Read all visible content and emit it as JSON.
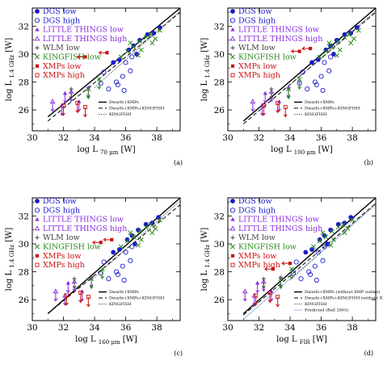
{
  "chart_data": [
    {
      "type": "scatter",
      "panel_label": "(a)",
      "xlabel": "log L",
      "xlabel_sub": "70 μm",
      "xlabel_unit": "[W]",
      "ylabel": "log L",
      "ylabel_sub": "1.4 GHz",
      "ylabel_unit": "[W]",
      "xlim": [
        30,
        39.5
      ],
      "ylim": [
        24.5,
        33.3
      ],
      "xticks": [
        "30",
        "32",
        "34",
        "36",
        "38"
      ],
      "yticks": [
        "26",
        "28",
        "30",
        "32"
      ],
      "legend": [
        "DGS low",
        "DGS high",
        "LITTLE THINGS low",
        "LITTLE THINGS high",
        "WLM low",
        "KINGFISH low",
        "XMPs low",
        "XMPs high"
      ],
      "fit_legend": [
        "Dwarfs+XMPs",
        "Dwarfs+XMPs+KINGFISH",
        "KINGFISH"
      ],
      "fits": [
        {
          "style": "solid",
          "x": [
            31,
            39.5
          ],
          "y": [
            25.5,
            33.3
          ]
        },
        {
          "style": "dashed",
          "x": [
            31,
            39.5
          ],
          "y": [
            25.2,
            33.0
          ]
        },
        {
          "style": "dotted",
          "x": [
            34,
            39.5
          ],
          "y": [
            27.6,
            33.1
          ]
        }
      ],
      "series": [
        {
          "name": "DGS low",
          "x": [
            35.6,
            36.2,
            36.5,
            36.9,
            37.4,
            37.8,
            38.2,
            35.2,
            36.7
          ],
          "y": [
            29.6,
            30.3,
            30.6,
            31.0,
            31.4,
            31.5,
            31.9,
            29.4,
            30.0
          ]
        },
        {
          "name": "DGS high",
          "x": [
            34.9,
            35.4,
            35.8,
            36.3,
            35.5,
            34.6,
            36.0,
            35.9,
            34.4,
            36.4
          ],
          "y": [
            27.5,
            28.0,
            28.4,
            28.8,
            27.8,
            28.7,
            29.4,
            27.4,
            27.9,
            29.8
          ]
        },
        {
          "name": "LITTLE THINGS low",
          "x": [
            32.1,
            33.0,
            33.6
          ],
          "y": [
            27.2,
            26.6,
            27.6
          ]
        },
        {
          "name": "LITTLE THINGS high",
          "x": [
            31.3,
            31.9,
            32.5
          ],
          "y": [
            26.6,
            26.3,
            27.3
          ]
        },
        {
          "name": "WLM low",
          "x": [
            32.5
          ],
          "y": [
            27.5
          ]
        },
        {
          "name": "KINGFISH low",
          "x": [
            35.7,
            36.1,
            36.5,
            36.9,
            37.3,
            37.6,
            37.9,
            38.2,
            36.3,
            37.0,
            37.7,
            36.8,
            33.6,
            34.3
          ],
          "y": [
            29.8,
            30.2,
            30.5,
            30.9,
            31.2,
            31.4,
            31.1,
            31.7,
            30.8,
            30.3,
            30.8,
            29.9,
            27.5,
            28.2
          ]
        },
        {
          "name": "XMPs low",
          "x": [
            33.4,
            34.8
          ],
          "y": [
            29.8,
            30.1
          ]
        },
        {
          "name": "XMPs high",
          "x": [
            32.0,
            32.9,
            33.4
          ],
          "y": [
            26.3,
            26.5,
            26.2
          ]
        }
      ]
    },
    {
      "type": "scatter",
      "panel_label": "(b)",
      "xlabel": "log L",
      "xlabel_sub": "100 μm",
      "xlabel_unit": "[W]",
      "ylabel": "log L",
      "ylabel_sub": "1.4 GHz",
      "ylabel_unit": "[W]",
      "xlim": [
        30,
        39.5
      ],
      "ylim": [
        24.5,
        33.3
      ],
      "xticks": [
        "30",
        "32",
        "34",
        "36",
        "38"
      ],
      "yticks": [
        "26",
        "28",
        "30",
        "32"
      ],
      "legend": [
        "DGS low",
        "DGS high",
        "LITTLE THINGS low",
        "LITTLE THINGS high",
        "WLM low",
        "KINGFISH low",
        "XMPs low",
        "XMPs high"
      ],
      "fit_legend": [
        "Dwarfs+XMPs",
        "Dwarfs+XMPs+KINGFISH",
        "KINGFISH"
      ],
      "fits": [
        {
          "style": "solid",
          "x": [
            31,
            39.5
          ],
          "y": [
            25.2,
            33.3
          ]
        },
        {
          "style": "dashed",
          "x": [
            31,
            39.5
          ],
          "y": [
            25.0,
            33.0
          ]
        },
        {
          "style": "dotted",
          "x": [
            34,
            39.5
          ],
          "y": [
            27.8,
            33.1
          ]
        }
      ],
      "series": [
        {
          "name": "DGS low",
          "x": [
            35.8,
            36.3,
            36.6,
            37.0,
            37.5,
            37.9,
            38.3,
            35.4,
            36.8
          ],
          "y": [
            29.6,
            30.3,
            30.6,
            31.0,
            31.4,
            31.5,
            31.9,
            29.4,
            30.0
          ]
        },
        {
          "name": "DGS high",
          "x": [
            35.1,
            35.6,
            36.0,
            36.5,
            35.7,
            34.8,
            36.2,
            36.1,
            34.6,
            36.6
          ],
          "y": [
            27.5,
            28.0,
            28.4,
            28.8,
            27.8,
            28.7,
            29.4,
            27.4,
            27.9,
            29.8
          ]
        },
        {
          "name": "LITTLE THINGS low",
          "x": [
            32.4,
            33.3,
            33.9
          ],
          "y": [
            27.2,
            26.6,
            27.6
          ]
        },
        {
          "name": "LITTLE THINGS high",
          "x": [
            31.6,
            32.2,
            32.8
          ],
          "y": [
            26.6,
            26.3,
            27.3
          ]
        },
        {
          "name": "WLM low",
          "x": [
            32.8
          ],
          "y": [
            27.5
          ]
        },
        {
          "name": "KINGFISH low",
          "x": [
            35.9,
            36.3,
            36.7,
            37.1,
            37.5,
            37.8,
            38.1,
            38.4,
            36.5,
            37.2,
            37.9,
            37.0,
            33.9,
            34.6
          ],
          "y": [
            29.8,
            30.2,
            30.5,
            30.9,
            31.2,
            31.4,
            31.1,
            31.7,
            30.8,
            30.3,
            30.8,
            29.9,
            27.5,
            28.2
          ]
        },
        {
          "name": "XMPs low",
          "x": [
            34.6,
            35.3
          ],
          "y": [
            30.2,
            30.4
          ]
        },
        {
          "name": "XMPs high",
          "x": [
            32.3,
            33.2,
            33.7
          ],
          "y": [
            26.3,
            26.5,
            26.2
          ]
        }
      ]
    },
    {
      "type": "scatter",
      "panel_label": "(c)",
      "xlabel": "log L",
      "xlabel_sub": "160 μm",
      "xlabel_unit": "[W]",
      "ylabel": "log L",
      "ylabel_sub": "1.4 GHz",
      "ylabel_unit": "[W]",
      "xlim": [
        30,
        39.5
      ],
      "ylim": [
        24.5,
        33.3
      ],
      "xticks": [
        "30",
        "32",
        "34",
        "36",
        "38"
      ],
      "yticks": [
        "26",
        "28",
        "30",
        "32"
      ],
      "legend": [
        "DGS low",
        "DGS high",
        "LITTLE THINGS low",
        "LITTLE THINGS high",
        "WLM low",
        "KINGFISH low",
        "XMPs low",
        "XMPs high"
      ],
      "fit_legend": [
        "Dwarfs+XMPs",
        "Dwarfs+XMPs+KINGFISH",
        "KINGFISH"
      ],
      "fits": [
        {
          "style": "solid",
          "x": [
            31,
            39.5
          ],
          "y": [
            25.0,
            33.3
          ]
        },
        {
          "style": "dashed",
          "x": [
            31,
            39.5
          ],
          "y": [
            25.0,
            32.8
          ]
        },
        {
          "style": "dotted",
          "x": [
            34,
            39.5
          ],
          "y": [
            27.6,
            33.1
          ]
        }
      ],
      "series": [
        {
          "name": "DGS low",
          "x": [
            35.6,
            36.1,
            36.4,
            36.8,
            37.3,
            37.7,
            38.1,
            35.2,
            36.6
          ],
          "y": [
            29.6,
            30.3,
            30.6,
            31.0,
            31.4,
            31.5,
            31.9,
            29.4,
            30.0
          ]
        },
        {
          "name": "DGS high",
          "x": [
            34.9,
            35.4,
            35.8,
            36.3,
            35.5,
            34.6,
            36.0,
            35.9,
            34.4,
            36.4
          ],
          "y": [
            27.5,
            28.0,
            28.4,
            28.8,
            27.8,
            28.7,
            29.4,
            27.4,
            27.9,
            29.8
          ]
        },
        {
          "name": "LITTLE THINGS low",
          "x": [
            32.3,
            33.2,
            33.8
          ],
          "y": [
            27.2,
            26.6,
            27.6
          ]
        },
        {
          "name": "LITTLE THINGS high",
          "x": [
            31.5,
            32.1,
            32.7
          ],
          "y": [
            26.6,
            26.3,
            27.3
          ]
        },
        {
          "name": "WLM low",
          "x": [
            32.7
          ],
          "y": [
            27.5
          ]
        },
        {
          "name": "KINGFISH low",
          "x": [
            35.7,
            36.1,
            36.5,
            36.9,
            37.3,
            37.6,
            37.9,
            38.2,
            36.3,
            37.0,
            37.7,
            36.8,
            33.8,
            34.5
          ],
          "y": [
            29.8,
            30.2,
            30.5,
            30.9,
            31.2,
            31.4,
            31.1,
            31.7,
            30.8,
            30.3,
            30.8,
            29.9,
            27.5,
            28.2
          ]
        },
        {
          "name": "XMPs low",
          "x": [
            34.4,
            35.1
          ],
          "y": [
            30.1,
            30.3
          ]
        },
        {
          "name": "XMPs high",
          "x": [
            32.2,
            33.1,
            33.6
          ],
          "y": [
            26.3,
            26.5,
            26.2
          ]
        }
      ]
    },
    {
      "type": "scatter",
      "panel_label": "(d)",
      "xlabel": "log L",
      "xlabel_sub": "FIR",
      "xlabel_unit": "[W]",
      "ylabel": "log L",
      "ylabel_sub": "1.4 GHz",
      "ylabel_unit": "[W]",
      "xlim": [
        30,
        39.5
      ],
      "ylim": [
        24.5,
        33.3
      ],
      "xticks": [
        "30",
        "32",
        "34",
        "36",
        "38"
      ],
      "yticks": [
        "26",
        "28",
        "30",
        "32"
      ],
      "legend": [
        "DGS low",
        "DGS high",
        "LITTLE THINGS low",
        "LITTLE THINGS high",
        "WLM low",
        "KINGFISH low",
        "XMPs low",
        "XMPs high"
      ],
      "fit_legend": [
        "Dwarfs+XMPs (without XMP outlier)",
        "Dwarfs+XMPs+KINGFISH (without XMP outlier)",
        "KINGFISH",
        "Predicted (Bell 2003)"
      ],
      "fits": [
        {
          "style": "solid",
          "x": [
            31,
            39.5
          ],
          "y": [
            25.0,
            33.3
          ]
        },
        {
          "style": "dashed",
          "x": [
            31,
            39.5
          ],
          "y": [
            24.9,
            32.9
          ]
        },
        {
          "style": "dotted",
          "x": [
            34,
            39.5
          ],
          "y": [
            27.4,
            32.9
          ]
        },
        {
          "style": "solid-light",
          "x": [
            31,
            39.5
          ],
          "y": [
            24.6,
            32.8
          ]
        }
      ],
      "series": [
        {
          "name": "DGS low",
          "x": [
            35.4,
            35.9,
            36.2,
            36.6,
            37.1,
            37.5,
            37.9,
            35.0,
            36.4
          ],
          "y": [
            29.6,
            30.3,
            30.6,
            31.0,
            31.4,
            31.5,
            31.9,
            29.4,
            30.0
          ]
        },
        {
          "name": "DGS high",
          "x": [
            34.7,
            35.2,
            35.6,
            36.1,
            35.3,
            34.4,
            35.8,
            35.7,
            34.2,
            36.2
          ],
          "y": [
            27.5,
            28.0,
            28.4,
            28.8,
            27.8,
            28.7,
            29.4,
            27.4,
            27.9,
            29.8
          ]
        },
        {
          "name": "LITTLE THINGS low",
          "x": [
            31.9,
            32.8,
            33.4
          ],
          "y": [
            27.2,
            26.6,
            27.6
          ]
        },
        {
          "name": "LITTLE THINGS high",
          "x": [
            31.1,
            31.7,
            32.3
          ],
          "y": [
            26.6,
            26.3,
            27.3
          ]
        },
        {
          "name": "WLM low",
          "x": [
            32.3
          ],
          "y": [
            27.5
          ]
        },
        {
          "name": "KINGFISH low",
          "x": [
            35.5,
            35.9,
            36.3,
            36.7,
            37.1,
            37.4,
            37.7,
            38.0,
            36.1,
            36.8,
            37.5,
            36.6,
            33.4,
            34.1
          ],
          "y": [
            29.8,
            30.2,
            30.5,
            30.9,
            31.2,
            31.4,
            31.1,
            31.7,
            30.8,
            30.3,
            30.8,
            29.9,
            27.5,
            28.2
          ]
        },
        {
          "name": "XMPs low",
          "x": [
            32.9,
            34.0
          ],
          "y": [
            28.2,
            28.6
          ]
        },
        {
          "name": "XMPs high",
          "x": [
            31.8,
            32.7,
            33.2
          ],
          "y": [
            26.3,
            26.5,
            26.2
          ]
        }
      ]
    }
  ]
}
